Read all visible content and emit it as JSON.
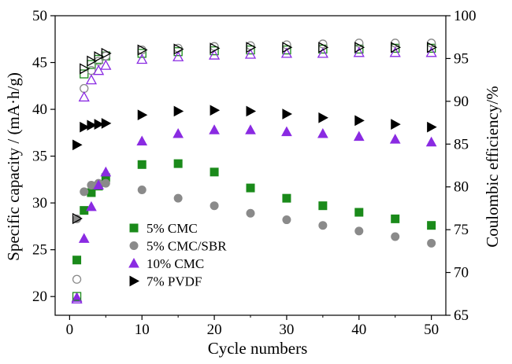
{
  "chart_data": {
    "type": "scatter",
    "xlabel": "Cycle numbers",
    "ylabel": "Specific capacity / (mA·h/g)",
    "y2label": "Coulombic efficiency/%",
    "xlim": [
      -2,
      52
    ],
    "ylim": [
      18,
      50
    ],
    "y2lim": [
      65,
      100
    ],
    "xticks": [
      0,
      10,
      20,
      30,
      40,
      50
    ],
    "yticks": [
      20,
      25,
      30,
      35,
      40,
      45,
      50
    ],
    "y2ticks": [
      65,
      70,
      75,
      80,
      85,
      90,
      95,
      100
    ],
    "legend_position": "lower-left",
    "series": [
      {
        "name": "5% CMC",
        "marker": "square",
        "color": "#1a8a1a",
        "axis": "capacity",
        "x": [
          1,
          2,
          3,
          4,
          5,
          10,
          15,
          20,
          25,
          30,
          35,
          40,
          45,
          50
        ],
        "values": [
          23.9,
          29.2,
          31.1,
          31.8,
          32.7,
          34.1,
          34.2,
          33.3,
          31.6,
          30.5,
          29.7,
          29.0,
          28.3,
          27.6
        ]
      },
      {
        "name": "5% CMC/SBR",
        "marker": "circle",
        "color": "#8a8a8a",
        "axis": "capacity",
        "x": [
          1,
          2,
          3,
          4,
          5,
          10,
          15,
          20,
          25,
          30,
          35,
          40,
          45,
          50
        ],
        "values": [
          28.3,
          31.2,
          31.9,
          32.1,
          32.1,
          31.4,
          30.5,
          29.7,
          28.9,
          28.2,
          27.6,
          27.0,
          26.4,
          25.7
        ]
      },
      {
        "name": "10% CMC",
        "marker": "triangle-up",
        "color": "#8a2be2",
        "axis": "capacity",
        "x": [
          1,
          2,
          3,
          4,
          5,
          10,
          15,
          20,
          25,
          30,
          35,
          40,
          45,
          50
        ],
        "values": [
          19.9,
          26.2,
          29.6,
          31.9,
          33.3,
          36.6,
          37.4,
          37.8,
          37.8,
          37.6,
          37.4,
          37.1,
          36.8,
          36.5
        ]
      },
      {
        "name": "7% PVDF",
        "marker": "triangle-right",
        "color": "#000000",
        "axis": "capacity",
        "x": [
          1,
          2,
          3,
          4,
          5,
          10,
          15,
          20,
          25,
          30,
          35,
          40,
          45,
          50
        ],
        "values": [
          36.2,
          38.1,
          38.3,
          38.4,
          38.5,
          39.4,
          39.8,
          39.9,
          39.8,
          39.5,
          39.1,
          38.8,
          38.4,
          38.1
        ]
      },
      {
        "marker": "square-open",
        "color": "#1a8a1a",
        "axis": "efficiency",
        "x": [
          1,
          2,
          3,
          4,
          5,
          10,
          15,
          20,
          25,
          30,
          35,
          40,
          45,
          50
        ],
        "values": [
          67.2,
          93.2,
          94.3,
          94.9,
          95.3,
          95.6,
          95.8,
          95.9,
          96.0,
          96.0,
          96.1,
          96.1,
          96.2,
          96.2
        ]
      },
      {
        "marker": "circle-open",
        "color": "#8a8a8a",
        "axis": "efficiency",
        "x": [
          1,
          2,
          3,
          4,
          5,
          10,
          15,
          20,
          25,
          30,
          35,
          40,
          45,
          50
        ],
        "values": [
          69.2,
          91.5,
          93.6,
          94.7,
          95.3,
          96.0,
          96.2,
          96.4,
          96.5,
          96.6,
          96.7,
          96.8,
          96.8,
          96.8
        ]
      },
      {
        "marker": "triangle-up-open",
        "color": "#8a2be2",
        "axis": "efficiency",
        "x": [
          1,
          2,
          3,
          4,
          5,
          10,
          15,
          20,
          25,
          30,
          35,
          40,
          45,
          50
        ],
        "values": [
          66.9,
          90.5,
          92.5,
          93.6,
          94.2,
          94.9,
          95.2,
          95.4,
          95.5,
          95.6,
          95.6,
          95.7,
          95.7,
          95.7
        ]
      },
      {
        "marker": "triangle-right-open",
        "color": "#000000",
        "axis": "efficiency",
        "x": [
          1,
          2,
          3,
          4,
          5,
          10,
          15,
          20,
          25,
          30,
          35,
          40,
          45,
          50
        ],
        "values": [
          76.3,
          93.8,
          94.7,
          95.2,
          95.6,
          96.0,
          96.1,
          96.2,
          96.3,
          96.3,
          96.3,
          96.3,
          96.3,
          96.3
        ]
      }
    ]
  }
}
